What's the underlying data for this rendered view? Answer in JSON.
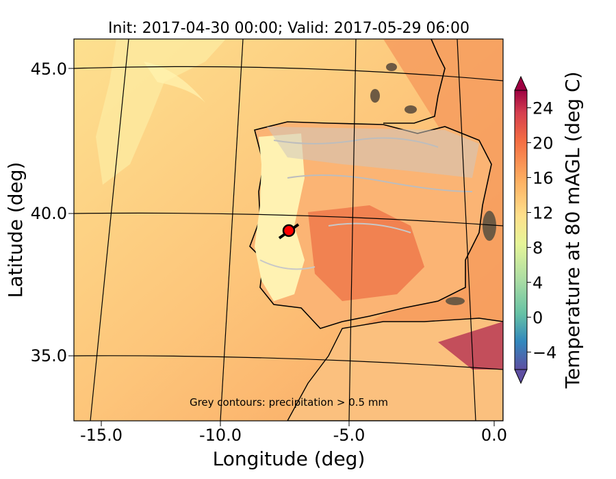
{
  "title": "Init: 2017-04-30 00:00; Valid: 2017-05-29 06:00",
  "xlabel": "Longitude (deg)",
  "ylabel": "Latitude (deg)",
  "annotation": "Grey contours: precipitation  > 0.5 mm",
  "colorbar": {
    "label": "Temperature at 80 mAGL (deg C)",
    "ticks": [
      "−4",
      "0",
      "4",
      "8",
      "12",
      "16",
      "20",
      "24"
    ],
    "range": [
      -6,
      26
    ],
    "colormap": "Spectral_r"
  },
  "chart_data": {
    "type": "heatmap",
    "title": "Init: 2017-04-30 00:00; Valid: 2017-05-29 06:00",
    "xlabel": "Longitude (deg)",
    "ylabel": "Latitude (deg)",
    "x_ticks": [
      "-15.0",
      "-10.0",
      "-5.0",
      "0.0"
    ],
    "y_ticks": [
      "45.0",
      "40.0",
      "35.0"
    ],
    "xlim": [
      -16,
      0
    ],
    "ylim": [
      33,
      46
    ],
    "marker": {
      "lon": -7.6,
      "lat": 39.3,
      "color": "#ff0000"
    }
  }
}
